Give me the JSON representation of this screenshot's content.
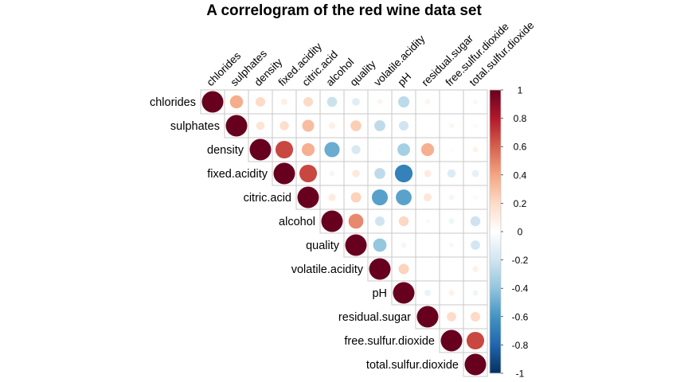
{
  "chart_data": {
    "type": "heatmap",
    "style": "correlogram-circle-upper",
    "title": "A correlogram of the red wine data set",
    "variables": [
      "chlorides",
      "sulphates",
      "density",
      "fixed.acidity",
      "citric.acid",
      "alcohol",
      "quality",
      "volatile.acidity",
      "pH",
      "residual.sugar",
      "free.sulfur.dioxide",
      "total.sulfur.dioxide"
    ],
    "matrix": [
      [
        1,
        0.37,
        0.2,
        0.09,
        0.2,
        -0.22,
        -0.13,
        0.06,
        -0.27,
        0.06,
        0.01,
        0.05
      ],
      [
        null,
        1,
        0.15,
        0.18,
        0.31,
        0.09,
        0.25,
        -0.26,
        -0.2,
        0.01,
        0.05,
        0.04
      ],
      [
        null,
        null,
        1,
        0.67,
        0.36,
        -0.5,
        -0.17,
        0.02,
        -0.34,
        0.36,
        -0.02,
        0.07
      ],
      [
        null,
        null,
        null,
        1,
        0.67,
        -0.06,
        0.12,
        -0.26,
        -0.68,
        0.11,
        -0.15,
        -0.11
      ],
      [
        null,
        null,
        null,
        null,
        1,
        0.11,
        0.23,
        -0.55,
        -0.54,
        0.14,
        -0.06,
        0.04
      ],
      [
        null,
        null,
        null,
        null,
        null,
        1,
        0.48,
        -0.2,
        0.21,
        0.04,
        -0.07,
        -0.21
      ],
      [
        null,
        null,
        null,
        null,
        null,
        null,
        1,
        -0.39,
        -0.06,
        0.01,
        -0.05,
        -0.19
      ],
      [
        null,
        null,
        null,
        null,
        null,
        null,
        null,
        1,
        0.23,
        0.0,
        -0.01,
        0.08
      ],
      [
        null,
        null,
        null,
        null,
        null,
        null,
        null,
        null,
        1,
        -0.09,
        0.07,
        -0.07
      ],
      [
        null,
        null,
        null,
        null,
        null,
        null,
        null,
        null,
        null,
        1,
        0.19,
        0.2
      ],
      [
        null,
        null,
        null,
        null,
        null,
        null,
        null,
        null,
        null,
        null,
        1,
        0.67
      ],
      [
        null,
        null,
        null,
        null,
        null,
        null,
        null,
        null,
        null,
        null,
        null,
        1
      ]
    ],
    "color_scale": {
      "range": [
        -1,
        1
      ],
      "ticks": [
        "1",
        "0.8",
        "0.6",
        "0.4",
        "0.2",
        "0",
        "-0.2",
        "-0.4",
        "-0.6",
        "-0.8",
        "-1"
      ],
      "tick_values": [
        1,
        0.8,
        0.6,
        0.4,
        0.2,
        0,
        -0.2,
        -0.4,
        -0.6,
        -0.8,
        -1
      ],
      "colors": [
        "#67001F",
        "#B2182B",
        "#D6604D",
        "#F4A582",
        "#FDDBC7",
        "#FFFFFF",
        "#D1E5F0",
        "#92C5DE",
        "#4393C3",
        "#2166AC",
        "#053061"
      ]
    },
    "legend": "right"
  }
}
